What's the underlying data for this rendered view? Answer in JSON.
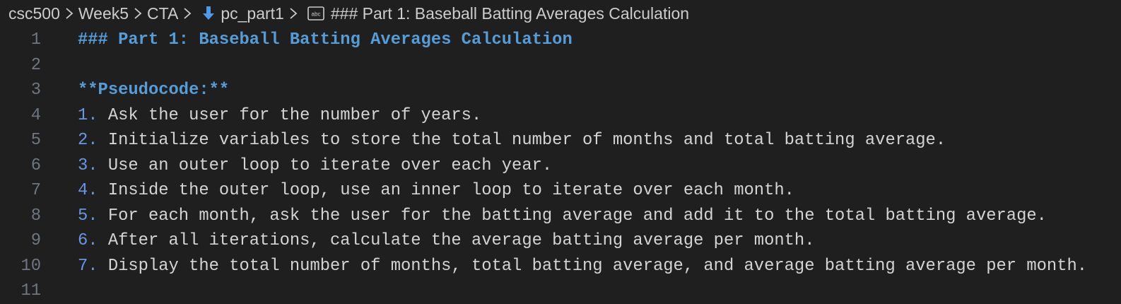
{
  "breadcrumb": [
    "csc500",
    "Week5",
    "CTA",
    "pc_part1",
    "### Part 1: Baseball Batting Averages Calculation"
  ],
  "lines": [
    {
      "number": "1",
      "segments": [
        {
          "text": "### Part 1: Baseball Batting Averages Calculation",
          "style": "heading"
        }
      ]
    },
    {
      "number": "2",
      "segments": []
    },
    {
      "number": "3",
      "segments": [
        {
          "text": "**Pseudocode:**",
          "style": "heading"
        }
      ]
    },
    {
      "number": "4",
      "segments": [
        {
          "text": "1.",
          "style": "marker"
        },
        {
          "text": " Ask the user for the number of years.",
          "style": "plain"
        }
      ]
    },
    {
      "number": "5",
      "segments": [
        {
          "text": "2.",
          "style": "marker"
        },
        {
          "text": " Initialize variables to store the total number of months and total batting average.",
          "style": "plain"
        }
      ]
    },
    {
      "number": "6",
      "segments": [
        {
          "text": "3.",
          "style": "marker"
        },
        {
          "text": " Use an outer loop to iterate over each year.",
          "style": "plain"
        }
      ]
    },
    {
      "number": "7",
      "segments": [
        {
          "text": "4.",
          "style": "marker"
        },
        {
          "text": " Inside the outer loop, use an inner loop to iterate over each month.",
          "style": "plain"
        }
      ]
    },
    {
      "number": "8",
      "segments": [
        {
          "text": "5.",
          "style": "marker"
        },
        {
          "text": " For each month, ask the user for the batting average and add it to the total batting average.",
          "style": "plain"
        }
      ]
    },
    {
      "number": "9",
      "segments": [
        {
          "text": "6.",
          "style": "marker"
        },
        {
          "text": " After all iterations, calculate the average batting average per month.",
          "style": "plain"
        }
      ]
    },
    {
      "number": "10",
      "segments": [
        {
          "text": "7.",
          "style": "marker"
        },
        {
          "text": " Display the total number of months, total batting average, and average batting average per month.",
          "style": "plain"
        }
      ]
    },
    {
      "number": "11",
      "segments": []
    }
  ]
}
